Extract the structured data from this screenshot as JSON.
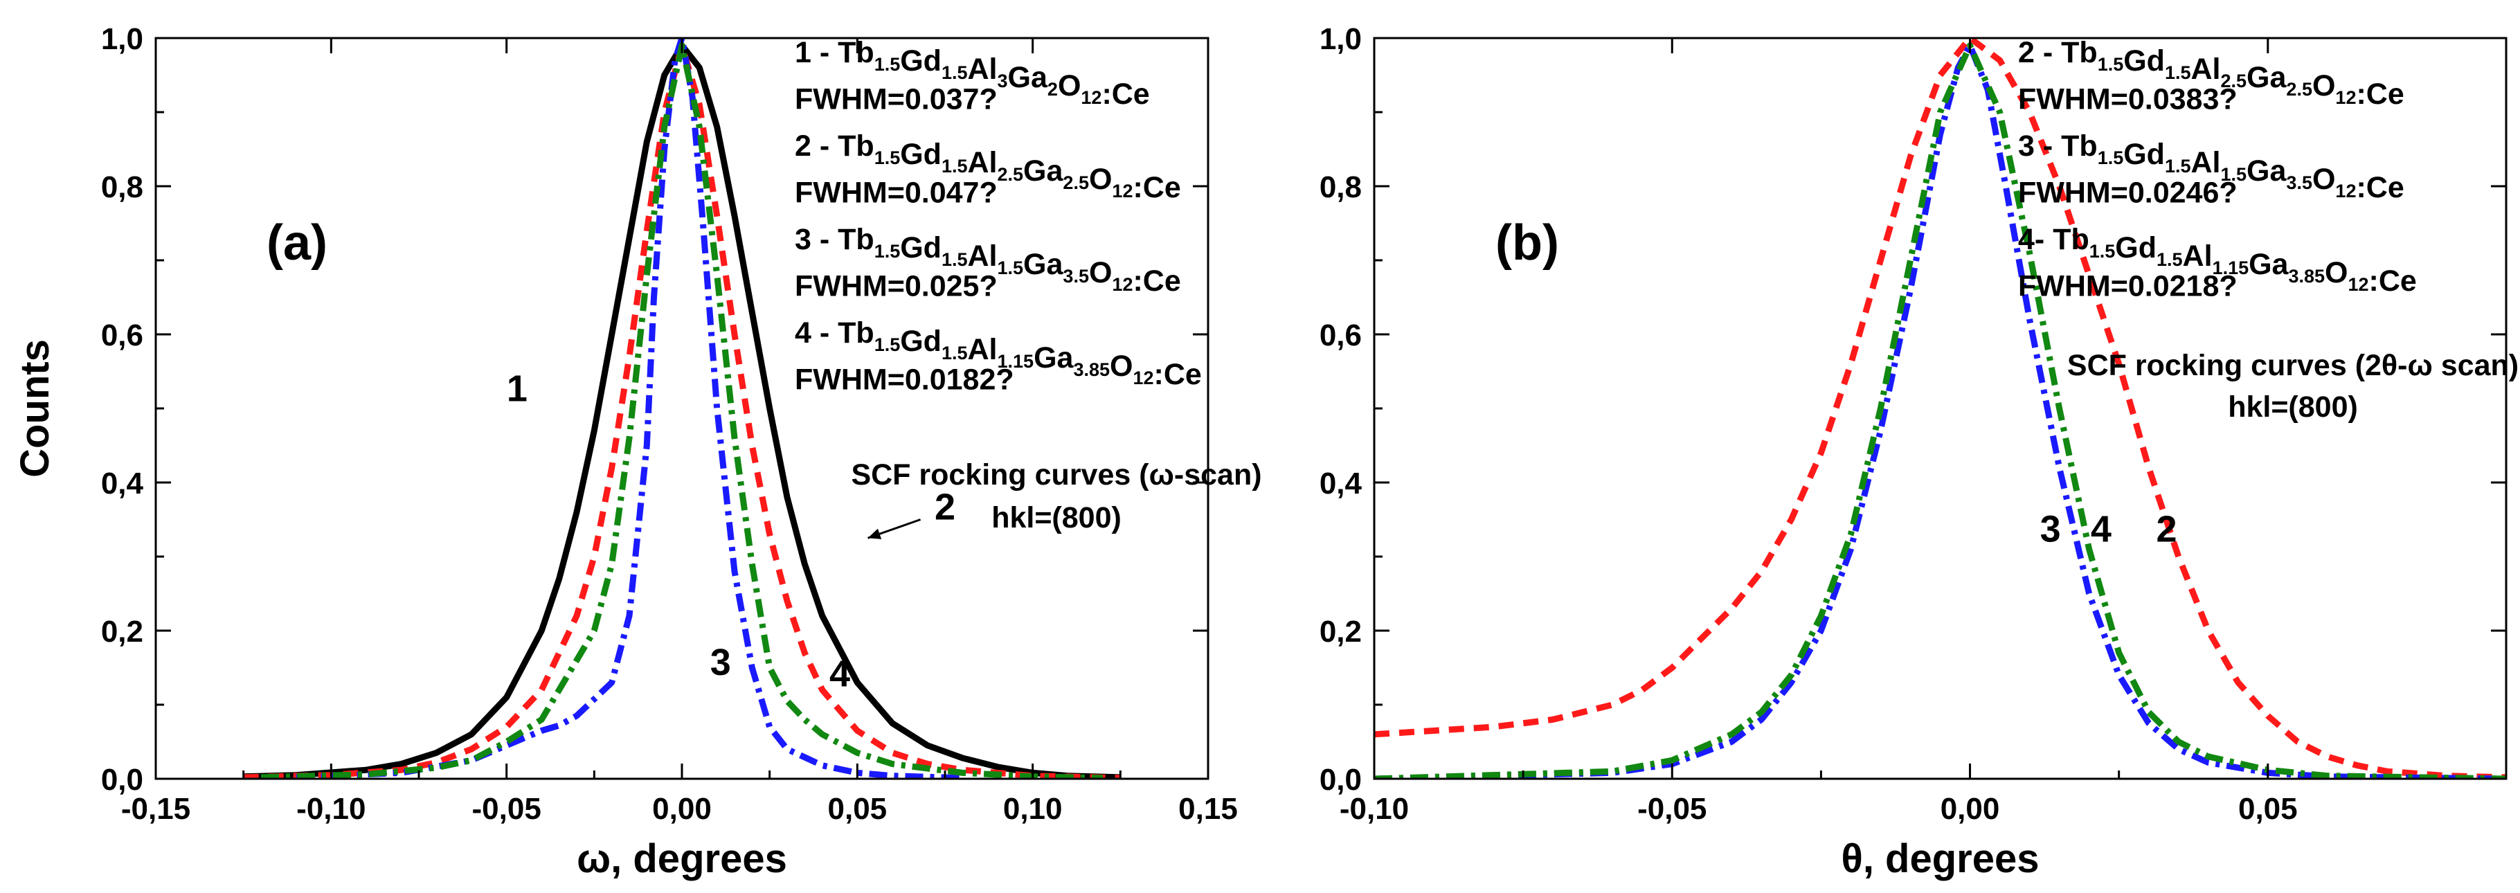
{
  "chart_data": [
    {
      "type": "line",
      "panel_label": "(a)",
      "xlabel": "ω, degrees",
      "ylabel": "Counts",
      "xlim": [
        -0.15,
        0.15
      ],
      "ylim": [
        0,
        1.0
      ],
      "x_ticks": [
        -0.15,
        -0.1,
        -0.05,
        0.0,
        0.05,
        0.1,
        0.15
      ],
      "x_tick_labels": [
        "-0,15",
        "-0,10",
        "-0,05",
        "0,00",
        "0,05",
        "0,10",
        "0,15"
      ],
      "y_ticks": [
        0,
        0.2,
        0.4,
        0.6,
        0.8,
        1.0
      ],
      "y_tick_labels": [
        "0,0",
        "0,2",
        "0,4",
        "0,6",
        "0,8",
        "1,0"
      ],
      "grid": false,
      "legend_position": "top-right",
      "legend": [
        {
          "prefix": "1 - ",
          "formula": [
            "Tb",
            "1.5",
            "Gd",
            "1.5",
            "Al",
            "3",
            "Ga",
            "2",
            "O",
            "12",
            ":Ce",
            ""
          ],
          "fwhm": "FWHM=0.037?"
        },
        {
          "prefix": "2 - ",
          "formula": [
            "Tb",
            "1.5",
            "Gd",
            "1.5",
            "Al",
            "2.5",
            "Ga",
            "2.5",
            "O",
            "12",
            ":Ce",
            ""
          ],
          "fwhm": "FWHM=0.047?"
        },
        {
          "prefix": "3 - ",
          "formula": [
            "Tb",
            "1.5",
            "Gd",
            "1.5",
            "Al",
            "1.5",
            "Ga",
            "3.5",
            "O",
            "12",
            ":Ce",
            ""
          ],
          "fwhm": "FWHM=0.025?"
        },
        {
          "prefix": "4 - ",
          "formula": [
            "Tb",
            "1.5",
            "Gd",
            "1.5",
            "Al",
            "1.15",
            "Ga",
            "3.85",
            "O",
            "12",
            ":Ce",
            ""
          ],
          "fwhm": "FWHM=0.0182?"
        }
      ],
      "annotation": [
        "SCF rocking curves (ω-scan)",
        "hkl=(800)"
      ],
      "curve_labels": [
        {
          "text": "1",
          "x": -0.047,
          "y": 0.51
        },
        {
          "text": "2",
          "x": 0.075,
          "y": 0.35
        },
        {
          "text": "3",
          "x": 0.011,
          "y": 0.14
        },
        {
          "text": "4",
          "x": 0.045,
          "y": 0.125
        }
      ],
      "arrow": {
        "from": [
          0.068,
          0.35
        ],
        "to": [
          0.053,
          0.325
        ]
      },
      "series": [
        {
          "name": "1",
          "color": "#000000",
          "dash": "none",
          "x": [
            -0.125,
            -0.11,
            -0.09,
            -0.08,
            -0.07,
            -0.06,
            -0.05,
            -0.04,
            -0.035,
            -0.03,
            -0.025,
            -0.02,
            -0.015,
            -0.01,
            -0.005,
            0,
            0.005,
            0.01,
            0.015,
            0.02,
            0.025,
            0.03,
            0.035,
            0.04,
            0.05,
            0.06,
            0.07,
            0.08,
            0.09,
            0.1,
            0.11,
            0.125
          ],
          "y": [
            0.003,
            0.005,
            0.012,
            0.02,
            0.035,
            0.06,
            0.11,
            0.2,
            0.27,
            0.36,
            0.47,
            0.6,
            0.73,
            0.86,
            0.95,
            0.99,
            0.96,
            0.88,
            0.76,
            0.63,
            0.5,
            0.38,
            0.29,
            0.22,
            0.13,
            0.075,
            0.045,
            0.028,
            0.016,
            0.008,
            0.004,
            0.002
          ]
        },
        {
          "name": "2",
          "color": "#ff1a1a",
          "dash": "22,14",
          "x": [
            -0.125,
            -0.1,
            -0.08,
            -0.07,
            -0.06,
            -0.05,
            -0.04,
            -0.03,
            -0.025,
            -0.02,
            -0.015,
            -0.01,
            -0.005,
            0,
            0.005,
            0.01,
            0.015,
            0.02,
            0.025,
            0.03,
            0.035,
            0.04,
            0.05,
            0.06,
            0.07,
            0.08,
            0.1,
            0.125
          ],
          "y": [
            0.002,
            0.005,
            0.012,
            0.022,
            0.04,
            0.07,
            0.12,
            0.22,
            0.3,
            0.42,
            0.57,
            0.74,
            0.9,
            0.99,
            0.91,
            0.76,
            0.6,
            0.45,
            0.33,
            0.24,
            0.17,
            0.12,
            0.065,
            0.035,
            0.02,
            0.012,
            0.004,
            0.001
          ]
        },
        {
          "name": "3",
          "color": "#1a1aff",
          "dash": "26,10,6,10",
          "x": [
            -0.11,
            -0.08,
            -0.06,
            -0.05,
            -0.04,
            -0.035,
            -0.03,
            -0.02,
            -0.015,
            -0.01,
            -0.008,
            -0.005,
            -0.002,
            0,
            0.003,
            0.006,
            0.01,
            0.015,
            0.02,
            0.025,
            0.03,
            0.04,
            0.05,
            0.06,
            0.08
          ],
          "y": [
            0.002,
            0.008,
            0.025,
            0.045,
            0.065,
            0.072,
            0.085,
            0.13,
            0.22,
            0.45,
            0.65,
            0.85,
            0.97,
            1.0,
            0.92,
            0.75,
            0.5,
            0.28,
            0.15,
            0.07,
            0.04,
            0.018,
            0.008,
            0.004,
            0.001
          ]
        },
        {
          "name": "4",
          "color": "#118811",
          "dash": "26,10,6,10",
          "x": [
            -0.12,
            -0.09,
            -0.07,
            -0.06,
            -0.05,
            -0.04,
            -0.03,
            -0.025,
            -0.02,
            -0.015,
            -0.01,
            -0.005,
            0,
            0.005,
            0.01,
            0.015,
            0.02,
            0.025,
            0.03,
            0.035,
            0.04,
            0.05,
            0.06,
            0.08,
            0.1,
            0.12
          ],
          "y": [
            0.002,
            0.006,
            0.015,
            0.025,
            0.05,
            0.08,
            0.16,
            0.2,
            0.29,
            0.46,
            0.68,
            0.88,
            0.99,
            0.88,
            0.68,
            0.46,
            0.29,
            0.15,
            0.105,
            0.08,
            0.06,
            0.035,
            0.02,
            0.008,
            0.003,
            0.001
          ]
        }
      ]
    },
    {
      "type": "line",
      "panel_label": "(b)",
      "xlabel": "θ, degrees",
      "ylabel": "",
      "xlim": [
        -0.1,
        0.09
      ],
      "ylim": [
        0,
        1.0
      ],
      "x_ticks": [
        -0.1,
        -0.05,
        0.0,
        0.05
      ],
      "x_tick_labels": [
        "-0,10",
        "-0,05",
        "0,00",
        "0,05"
      ],
      "y_ticks": [
        0,
        0.2,
        0.4,
        0.6,
        0.8,
        1.0
      ],
      "y_tick_labels": [
        "0,0",
        "0,2",
        "0,4",
        "0,6",
        "0,8",
        "1,0"
      ],
      "grid": false,
      "legend_position": "top-right",
      "legend": [
        {
          "prefix": "2 - ",
          "formula": [
            "Tb",
            "1.5",
            "Gd",
            "1.5",
            "Al",
            "2.5",
            "Ga",
            "2.5",
            "O",
            "12",
            ":Ce",
            ""
          ],
          "fwhm": "FWHM=0.0383?"
        },
        {
          "prefix": "3 - ",
          "formula": [
            "Tb",
            "1.5",
            "Gd",
            "1.5",
            "Al",
            "1.5",
            "Ga",
            "3.5",
            "O",
            "12",
            ":Ce",
            ""
          ],
          "fwhm": "FWHM=0.0246?"
        },
        {
          "prefix": "4- ",
          "formula": [
            "Tb",
            "1.5",
            "Gd",
            "1.5",
            "Al",
            "1.15",
            "Ga",
            "3.85",
            "O",
            "12",
            ":Ce",
            ""
          ],
          "fwhm": "FWHM=0.0218?"
        }
      ],
      "annotation": [
        "SCF rocking curves (2θ-ω scan)",
        "hkl=(800)"
      ],
      "curve_labels": [
        {
          "text": "3",
          "x": 0.0135,
          "y": 0.32
        },
        {
          "text": "4",
          "x": 0.022,
          "y": 0.32
        },
        {
          "text": "2",
          "x": 0.033,
          "y": 0.32
        }
      ],
      "series": [
        {
          "name": "2",
          "color": "#ff1a1a",
          "dash": "22,14",
          "x": [
            -0.1,
            -0.09,
            -0.08,
            -0.07,
            -0.065,
            -0.06,
            -0.055,
            -0.05,
            -0.045,
            -0.04,
            -0.035,
            -0.03,
            -0.025,
            -0.02,
            -0.015,
            -0.01,
            -0.005,
            0,
            0.005,
            0.01,
            0.015,
            0.02,
            0.025,
            0.03,
            0.035,
            0.04,
            0.045,
            0.05,
            0.055,
            0.06,
            0.065,
            0.07,
            0.08,
            0.09
          ],
          "y": [
            0.06,
            0.065,
            0.07,
            0.08,
            0.09,
            0.1,
            0.12,
            0.15,
            0.19,
            0.23,
            0.28,
            0.35,
            0.44,
            0.56,
            0.7,
            0.84,
            0.95,
            1.0,
            0.97,
            0.9,
            0.8,
            0.68,
            0.56,
            0.42,
            0.3,
            0.2,
            0.13,
            0.085,
            0.05,
            0.03,
            0.018,
            0.01,
            0.004,
            0.002
          ]
        },
        {
          "name": "3",
          "color": "#1a1aff",
          "dash": "26,10,6,10",
          "x": [
            -0.1,
            -0.06,
            -0.05,
            -0.04,
            -0.035,
            -0.03,
            -0.025,
            -0.02,
            -0.015,
            -0.01,
            -0.005,
            -0.002,
            0,
            0.003,
            0.006,
            0.01,
            0.015,
            0.02,
            0.025,
            0.03,
            0.035,
            0.04,
            0.05,
            0.06,
            0.09
          ],
          "y": [
            0.0,
            0.008,
            0.02,
            0.05,
            0.08,
            0.13,
            0.2,
            0.31,
            0.47,
            0.66,
            0.87,
            0.96,
            0.99,
            0.93,
            0.8,
            0.62,
            0.42,
            0.25,
            0.14,
            0.075,
            0.04,
            0.022,
            0.008,
            0.003,
            0.0
          ]
        },
        {
          "name": "4",
          "color": "#118811",
          "dash": "26,10,6,10",
          "x": [
            -0.1,
            -0.06,
            -0.05,
            -0.04,
            -0.035,
            -0.03,
            -0.025,
            -0.02,
            -0.015,
            -0.01,
            -0.005,
            0,
            0.005,
            0.01,
            0.015,
            0.02,
            0.025,
            0.03,
            0.035,
            0.04,
            0.05,
            0.06,
            0.09
          ],
          "y": [
            0.0,
            0.01,
            0.025,
            0.06,
            0.09,
            0.14,
            0.22,
            0.33,
            0.5,
            0.7,
            0.9,
            0.99,
            0.9,
            0.71,
            0.5,
            0.31,
            0.17,
            0.09,
            0.05,
            0.03,
            0.012,
            0.004,
            0.0
          ]
        }
      ]
    }
  ]
}
